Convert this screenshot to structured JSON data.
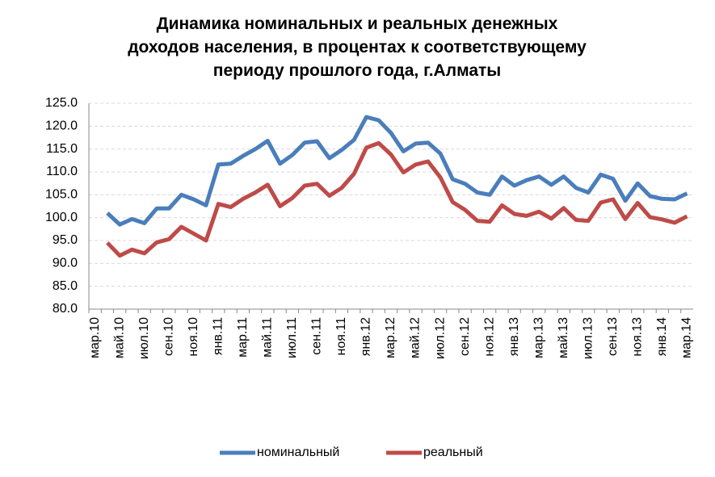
{
  "chart_data": {
    "type": "line",
    "title": "Динамика номинальных и реальных денежных доходов населения, в процентах к соответствующему периоду прошлого года, г.Алматы",
    "categories": [
      "мар.10",
      null,
      "май.10",
      null,
      "июл.10",
      null,
      "сен.10",
      null,
      "ноя.10",
      null,
      "янв.11",
      null,
      "мар.11",
      null,
      "май.11",
      null,
      "июл.11",
      null,
      "сен.11",
      null,
      "ноя.11",
      null,
      "янв.12",
      null,
      "мар.12",
      null,
      "май.12",
      null,
      "июл.12",
      null,
      "сен.12",
      null,
      "ноя.12",
      null,
      "янв.13",
      null,
      "мар.13",
      null,
      "май.13",
      null,
      "июл.13",
      null,
      "сен.13",
      null,
      "ноя.13",
      null,
      "янв.14",
      null,
      "мар.14"
    ],
    "series": [
      {
        "name": "номинальный",
        "color": "#4a7ebb",
        "values": [
          null,
          101.0,
          98.5,
          99.7,
          98.8,
          102.0,
          102.0,
          105.0,
          104.0,
          102.7,
          111.6,
          111.8,
          113.5,
          115.0,
          116.8,
          111.8,
          113.7,
          116.4,
          116.7,
          113.0,
          114.8,
          117.0,
          122.0,
          121.3,
          118.5,
          114.5,
          116.2,
          116.4,
          114.0,
          108.4,
          107.4,
          105.5,
          105.0,
          109.0,
          107.0,
          108.2,
          109.0,
          107.2,
          109.0,
          106.5,
          105.5,
          109.4,
          108.5,
          103.7,
          107.5,
          104.7,
          104.1,
          104.0,
          105.3
        ]
      },
      {
        "name": "реальный",
        "color": "#be4b48",
        "values": [
          null,
          94.5,
          91.7,
          93.0,
          92.2,
          94.6,
          95.3,
          98.0,
          96.5,
          95.0,
          103.0,
          102.3,
          104.1,
          105.5,
          107.2,
          102.5,
          104.3,
          107.0,
          107.4,
          104.8,
          106.5,
          109.6,
          115.3,
          116.3,
          113.8,
          109.9,
          111.6,
          112.3,
          108.8,
          103.4,
          101.7,
          99.3,
          99.1,
          102.7,
          100.8,
          100.4,
          101.3,
          99.8,
          102.1,
          99.5,
          99.3,
          103.3,
          104.0,
          99.7,
          103.2,
          100.1,
          99.6,
          98.9,
          100.3
        ]
      }
    ],
    "ylim": [
      80,
      125
    ],
    "yticks": [
      {
        "value": 80,
        "label": "80.0"
      },
      {
        "value": 85,
        "label": "85.0"
      },
      {
        "value": 90,
        "label": "90.0"
      },
      {
        "value": 95,
        "label": "95.0"
      },
      {
        "value": 100,
        "label": "100.0"
      },
      {
        "value": 105,
        "label": "105.0"
      },
      {
        "value": 110,
        "label": "110.0"
      },
      {
        "value": 115,
        "label": "115.0"
      },
      {
        "value": 120,
        "label": "120.0"
      },
      {
        "value": 125,
        "label": "125.0"
      }
    ],
    "grid": true,
    "legend": "bottom"
  }
}
